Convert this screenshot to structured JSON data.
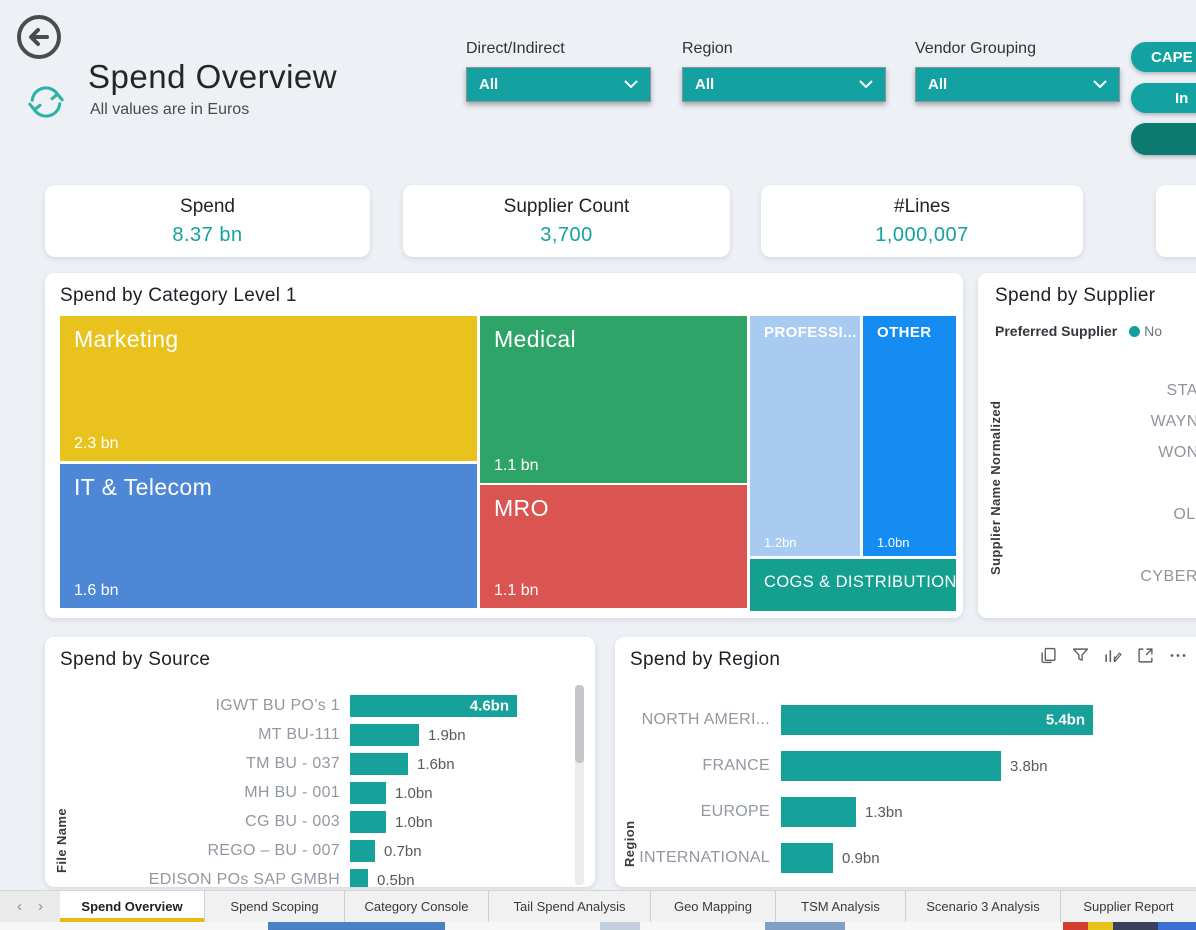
{
  "colors": {
    "accent": "#13a1a1",
    "bar": "#16a29a",
    "dark_button": "#0c7a70",
    "tab_underline": "#ecb911"
  },
  "header": {
    "title": "Spend Overview",
    "subtitle": "All values are in Euros",
    "filters": [
      {
        "label": "Direct/Indirect",
        "value": "All"
      },
      {
        "label": "Region",
        "value": "All"
      },
      {
        "label": "Vendor Grouping",
        "value": "All"
      }
    ],
    "pill_buttons": [
      {
        "label": "CAPE"
      },
      {
        "label": "In"
      },
      {
        "label": ""
      }
    ]
  },
  "kpis": [
    {
      "label": "Spend",
      "value": "8.37 bn"
    },
    {
      "label": "Supplier Count",
      "value": "3,700"
    },
    {
      "label": "#Lines",
      "value": "1,000,007"
    }
  ],
  "chart_data": [
    {
      "id": "treemap",
      "type": "treemap",
      "title": "Spend by Category Level 1",
      "unit": "EUR bn",
      "items": [
        {
          "name": "Marketing",
          "value": 2.3,
          "display": "2.3 bn",
          "color": "#e9c21d"
        },
        {
          "name": "IT & Telecom",
          "value": 1.6,
          "display": "1.6 bn",
          "color": "#4e87d5"
        },
        {
          "name": "Medical",
          "value": 1.1,
          "display": "1.1 bn",
          "color": "#2fa468"
        },
        {
          "name": "MRO",
          "value": 1.1,
          "display": "1.1 bn",
          "color": "#da5552"
        },
        {
          "name": "PROFESSI...",
          "value": 1.2,
          "display": "1.2bn",
          "color": "#a9cbf1"
        },
        {
          "name": "OTHER",
          "value": 1.0,
          "display": "1.0bn",
          "color": "#148cf2"
        },
        {
          "name": "COGS & DISTRIBUTION",
          "value": null,
          "display": "",
          "color": "#14a08e"
        }
      ]
    },
    {
      "id": "supplier",
      "type": "bar",
      "title": "Spend by Supplier",
      "axis_label": "Supplier Name Normalized",
      "legend_title": "Preferred Supplier",
      "legend_items": [
        {
          "label": "No",
          "color": "#13a09a"
        }
      ],
      "categories": [
        "STAR",
        "WAYNE",
        "WONK",
        "",
        "OLLI",
        "",
        "CYBERD"
      ],
      "note": "bars cropped beyond right edge of screenshot"
    },
    {
      "id": "source",
      "type": "bar",
      "title": "Spend by Source",
      "axis_label": "File Name",
      "unit": "bn",
      "items": [
        {
          "label": "IGWT BU PO’s 1",
          "value": 4.6,
          "display": "4.6bn"
        },
        {
          "label": "MT BU-111",
          "value": 1.9,
          "display": "1.9bn"
        },
        {
          "label": "TM BU - 037",
          "value": 1.6,
          "display": "1.6bn"
        },
        {
          "label": "MH BU - 001",
          "value": 1.0,
          "display": "1.0bn"
        },
        {
          "label": "CG BU - 003",
          "value": 1.0,
          "display": "1.0bn"
        },
        {
          "label": "REGO – BU - 007",
          "value": 0.7,
          "display": "0.7bn"
        },
        {
          "label": "EDISON POs SAP GMBH",
          "value": 0.5,
          "display": "0.5bn"
        }
      ]
    },
    {
      "id": "region",
      "type": "bar",
      "title": "Spend by Region",
      "axis_label": "Region",
      "unit": "bn",
      "items": [
        {
          "label": "NORTH AMERI...",
          "value": 5.4,
          "display": "5.4bn"
        },
        {
          "label": "FRANCE",
          "value": 3.8,
          "display": "3.8bn"
        },
        {
          "label": "EUROPE",
          "value": 1.3,
          "display": "1.3bn"
        },
        {
          "label": "INTERNATIONAL",
          "value": 0.9,
          "display": "0.9bn"
        }
      ]
    }
  ],
  "tabs": {
    "nav_left": "‹",
    "nav_right": "›",
    "items": [
      "Spend Overview",
      "Spend Scoping",
      "Category Console",
      "Tail Spend Analysis",
      "Geo Mapping",
      "TSM Analysis",
      "Scenario 3 Analysis",
      "Supplier Report"
    ],
    "active": "Spend Overview"
  }
}
